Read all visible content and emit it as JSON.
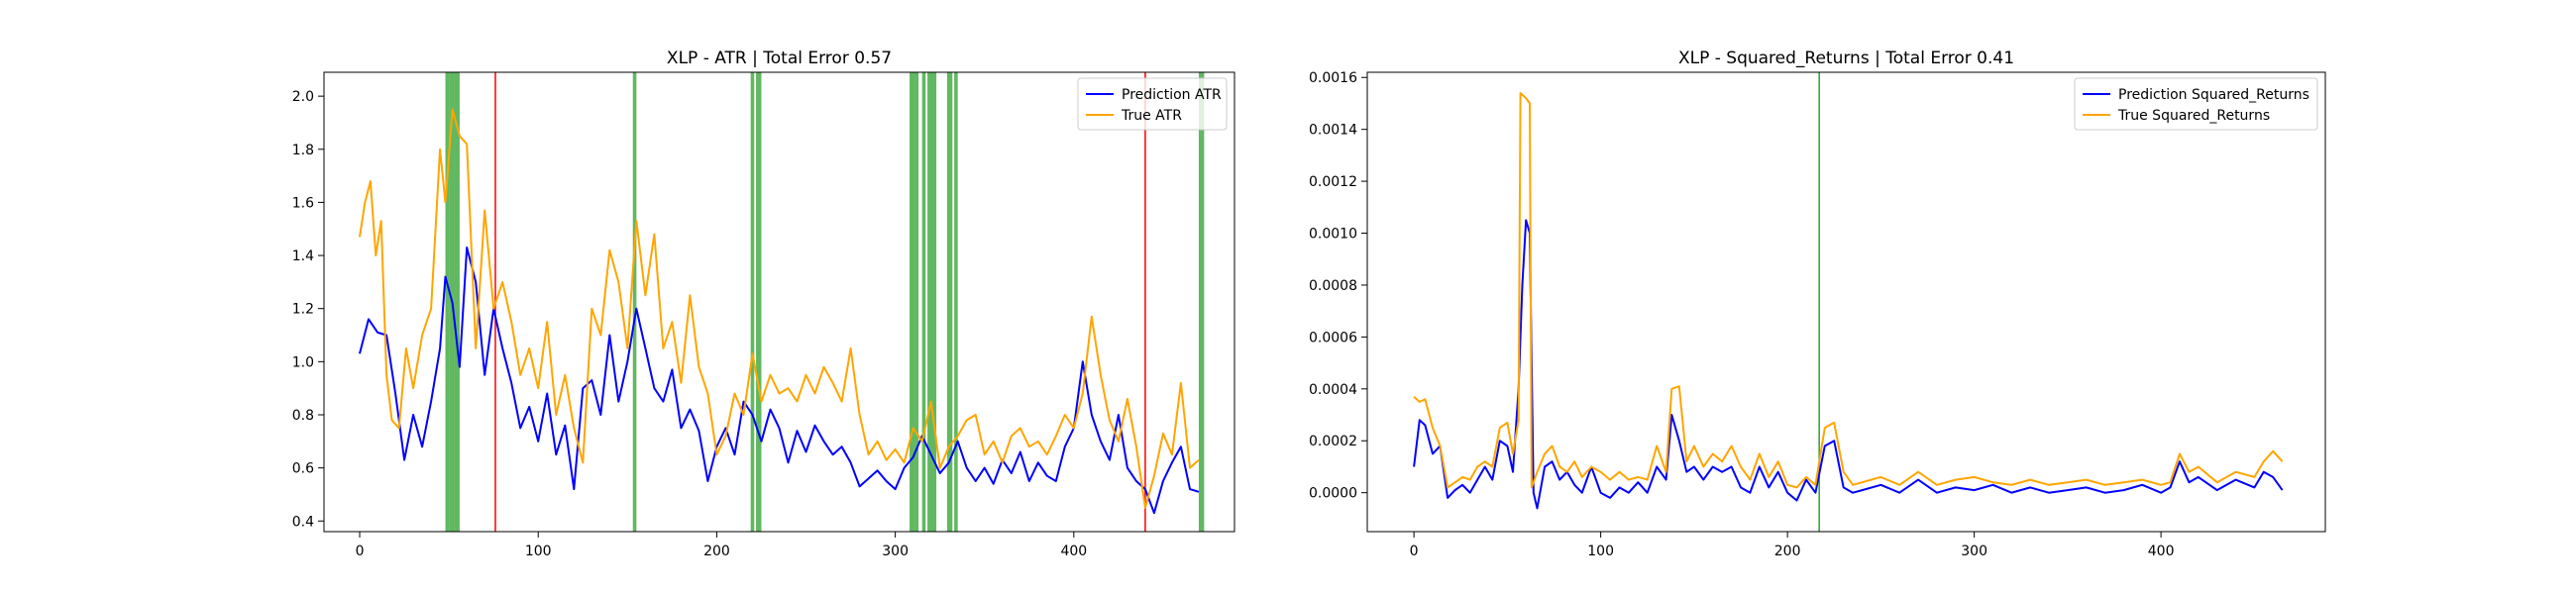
{
  "chart_data": [
    {
      "type": "line",
      "title": "XLP - ATR | Total Error 0.57",
      "xlabel": "",
      "ylabel": "",
      "xlim": [
        -20,
        490
      ],
      "ylim": [
        0.36,
        2.09
      ],
      "xticks": [
        0,
        100,
        200,
        300,
        400
      ],
      "yticks": [
        0.4,
        0.6,
        0.8,
        1.0,
        1.2,
        1.4,
        1.6,
        1.8,
        2.0
      ],
      "ytick_labels": [
        "0.4",
        "0.6",
        "0.8",
        "1.0",
        "1.2",
        "1.4",
        "1.6",
        "1.8",
        "2.0"
      ],
      "grid": false,
      "legend": "top-right",
      "colors": {
        "prediction": "#0000ff",
        "true": "#ffa500",
        "green_marker": "#2ca02c",
        "red_marker": "#ff0000"
      },
      "series": [
        {
          "name": "Prediction ATR",
          "color": "#0000ff",
          "x": [
            0,
            5,
            10,
            15,
            20,
            25,
            30,
            35,
            40,
            45,
            48,
            52,
            56,
            60,
            65,
            70,
            75,
            80,
            85,
            90,
            95,
            100,
            105,
            110,
            115,
            120,
            125,
            130,
            135,
            140,
            145,
            150,
            155,
            160,
            165,
            170,
            175,
            180,
            185,
            190,
            195,
            200,
            205,
            210,
            215,
            220,
            225,
            230,
            235,
            240,
            245,
            250,
            255,
            260,
            265,
            270,
            275,
            280,
            285,
            290,
            295,
            300,
            305,
            310,
            315,
            320,
            325,
            330,
            335,
            340,
            345,
            350,
            355,
            360,
            365,
            370,
            375,
            380,
            385,
            390,
            395,
            400,
            405,
            410,
            415,
            420,
            425,
            430,
            435,
            440,
            445,
            450,
            455,
            460,
            465,
            470
          ],
          "y": [
            1.03,
            1.16,
            1.11,
            1.1,
            0.88,
            0.63,
            0.8,
            0.68,
            0.85,
            1.05,
            1.32,
            1.22,
            0.98,
            1.43,
            1.3,
            0.95,
            1.2,
            1.05,
            0.92,
            0.75,
            0.83,
            0.7,
            0.88,
            0.65,
            0.76,
            0.52,
            0.9,
            0.93,
            0.8,
            1.1,
            0.85,
            1.0,
            1.2,
            1.05,
            0.9,
            0.85,
            0.97,
            0.75,
            0.82,
            0.74,
            0.55,
            0.68,
            0.75,
            0.65,
            0.85,
            0.8,
            0.7,
            0.82,
            0.75,
            0.62,
            0.74,
            0.66,
            0.76,
            0.7,
            0.65,
            0.68,
            0.62,
            0.53,
            0.56,
            0.59,
            0.55,
            0.52,
            0.6,
            0.64,
            0.72,
            0.65,
            0.58,
            0.62,
            0.7,
            0.6,
            0.55,
            0.6,
            0.54,
            0.63,
            0.58,
            0.66,
            0.55,
            0.62,
            0.57,
            0.55,
            0.68,
            0.75,
            1.0,
            0.8,
            0.7,
            0.63,
            0.8,
            0.6,
            0.55,
            0.52,
            0.43,
            0.55,
            0.62,
            0.68,
            0.52,
            0.51
          ]
        },
        {
          "name": "True ATR",
          "color": "#ffa500",
          "x": [
            0,
            3,
            6,
            9,
            12,
            15,
            18,
            22,
            26,
            30,
            35,
            40,
            45,
            48,
            52,
            56,
            60,
            65,
            70,
            75,
            80,
            85,
            90,
            95,
            100,
            105,
            110,
            115,
            120,
            125,
            130,
            135,
            140,
            145,
            150,
            155,
            160,
            165,
            170,
            175,
            180,
            185,
            190,
            195,
            200,
            205,
            210,
            215,
            220,
            225,
            230,
            235,
            240,
            245,
            250,
            255,
            260,
            265,
            270,
            275,
            280,
            285,
            290,
            295,
            300,
            305,
            310,
            315,
            320,
            325,
            330,
            335,
            340,
            345,
            350,
            355,
            360,
            365,
            370,
            375,
            380,
            385,
            390,
            395,
            400,
            405,
            410,
            415,
            420,
            425,
            430,
            435,
            440,
            445,
            450,
            455,
            460,
            465,
            470
          ],
          "y": [
            1.47,
            1.6,
            1.68,
            1.4,
            1.53,
            0.95,
            0.78,
            0.75,
            1.05,
            0.9,
            1.1,
            1.2,
            1.8,
            1.6,
            1.95,
            1.85,
            1.82,
            1.05,
            1.57,
            1.2,
            1.3,
            1.15,
            0.95,
            1.05,
            0.9,
            1.15,
            0.8,
            0.95,
            0.75,
            0.62,
            1.2,
            1.1,
            1.42,
            1.3,
            1.05,
            1.53,
            1.25,
            1.48,
            1.05,
            1.15,
            0.92,
            1.25,
            0.98,
            0.88,
            0.65,
            0.72,
            0.88,
            0.8,
            1.03,
            0.85,
            0.95,
            0.88,
            0.9,
            0.85,
            0.95,
            0.88,
            0.98,
            0.92,
            0.85,
            1.05,
            0.8,
            0.65,
            0.7,
            0.63,
            0.67,
            0.62,
            0.75,
            0.7,
            0.85,
            0.6,
            0.68,
            0.72,
            0.78,
            0.8,
            0.65,
            0.7,
            0.62,
            0.72,
            0.75,
            0.68,
            0.7,
            0.65,
            0.72,
            0.8,
            0.75,
            0.88,
            1.17,
            0.95,
            0.78,
            0.7,
            0.86,
            0.68,
            0.45,
            0.57,
            0.73,
            0.65,
            0.92,
            0.6,
            0.63
          ]
        }
      ],
      "green_bands": [
        [
          48,
          50
        ],
        [
          50,
          53
        ],
        [
          53,
          56
        ],
        [
          153,
          155
        ],
        [
          219,
          221
        ],
        [
          222,
          225
        ],
        [
          308,
          311
        ],
        [
          311,
          313
        ],
        [
          315,
          317
        ],
        [
          318,
          323
        ],
        [
          329,
          332
        ],
        [
          333,
          335
        ],
        [
          470,
          473
        ]
      ],
      "red_lines": [
        76,
        440
      ]
    },
    {
      "type": "line",
      "title": "XLP - Squared_Returns | Total Error 0.41",
      "xlabel": "",
      "ylabel": "",
      "xlim": [
        -25,
        488
      ],
      "ylim": [
        -0.00015,
        0.00162
      ],
      "xticks": [
        0,
        100,
        200,
        300,
        400
      ],
      "yticks": [
        0.0,
        0.0002,
        0.0004,
        0.0006,
        0.0008,
        0.001,
        0.0012,
        0.0014,
        0.0016
      ],
      "ytick_labels": [
        "0.0000",
        "0.0002",
        "0.0004",
        "0.0006",
        "0.0008",
        "0.0010",
        "0.0012",
        "0.0014",
        "0.0016"
      ],
      "grid": false,
      "legend": "top-right",
      "colors": {
        "prediction": "#0000ff",
        "true": "#ffa500",
        "green_marker": "#2ca02c"
      },
      "series": [
        {
          "name": "Prediction Squared_Returns",
          "color": "#0000ff",
          "x": [
            0,
            3,
            6,
            10,
            14,
            18,
            22,
            26,
            30,
            34,
            38,
            42,
            46,
            50,
            53,
            56,
            58,
            60,
            62,
            64,
            66,
            70,
            74,
            78,
            82,
            86,
            90,
            95,
            100,
            105,
            110,
            115,
            120,
            125,
            130,
            135,
            138,
            142,
            146,
            150,
            155,
            160,
            165,
            170,
            175,
            180,
            185,
            190,
            195,
            200,
            205,
            210,
            215,
            220,
            225,
            230,
            235,
            240,
            250,
            260,
            270,
            280,
            290,
            300,
            310,
            320,
            330,
            340,
            350,
            360,
            370,
            380,
            390,
            400,
            405,
            410,
            415,
            420,
            430,
            440,
            450,
            455,
            460,
            465
          ],
          "y": [
            0.0001,
            0.00028,
            0.00026,
            0.00015,
            0.00018,
            -2e-05,
            1e-05,
            3e-05,
            0.0,
            5e-05,
            0.0001,
            5e-05,
            0.0002,
            0.00018,
            8e-05,
            0.0004,
            0.0008,
            0.00105,
            0.001,
            0.0,
            -6e-05,
            0.0001,
            0.00012,
            5e-05,
            8e-05,
            3e-05,
            0.0,
            0.0001,
            0.0,
            -2e-05,
            2e-05,
            0.0,
            4e-05,
            0.0,
            0.0001,
            5e-05,
            0.0003,
            0.0002,
            8e-05,
            0.0001,
            5e-05,
            0.0001,
            8e-05,
            0.0001,
            2e-05,
            0.0,
            0.0001,
            2e-05,
            8e-05,
            0.0,
            -3e-05,
            5e-05,
            0.0,
            0.00018,
            0.0002,
            2e-05,
            0.0,
            1e-05,
            3e-05,
            0.0,
            5e-05,
            0.0,
            2e-05,
            1e-05,
            3e-05,
            0.0,
            2e-05,
            0.0,
            1e-05,
            2e-05,
            0.0,
            1e-05,
            3e-05,
            0.0,
            2e-05,
            0.00012,
            4e-05,
            6e-05,
            1e-05,
            5e-05,
            2e-05,
            8e-05,
            6e-05,
            1e-05
          ]
        },
        {
          "name": "True Squared_Returns",
          "color": "#ffa500",
          "x": [
            0,
            3,
            6,
            10,
            14,
            18,
            22,
            26,
            30,
            34,
            38,
            42,
            46,
            50,
            53,
            56,
            57,
            60,
            62,
            63,
            66,
            70,
            74,
            78,
            82,
            86,
            90,
            95,
            100,
            105,
            110,
            115,
            120,
            125,
            130,
            135,
            138,
            142,
            146,
            150,
            155,
            160,
            165,
            170,
            175,
            180,
            185,
            190,
            195,
            200,
            205,
            210,
            215,
            220,
            225,
            230,
            235,
            240,
            250,
            260,
            270,
            280,
            290,
            300,
            310,
            320,
            330,
            340,
            350,
            360,
            370,
            380,
            390,
            400,
            405,
            410,
            415,
            420,
            430,
            440,
            450,
            455,
            460,
            465
          ],
          "y": [
            0.00037,
            0.00035,
            0.00036,
            0.00025,
            0.00018,
            2e-05,
            4e-05,
            6e-05,
            5e-05,
            0.0001,
            0.00012,
            0.0001,
            0.00025,
            0.00027,
            0.00015,
            0.00028,
            0.00154,
            0.00152,
            0.0015,
            2e-05,
            8e-05,
            0.00015,
            0.00018,
            0.0001,
            8e-05,
            0.00012,
            6e-05,
            0.0001,
            8e-05,
            5e-05,
            8e-05,
            5e-05,
            6e-05,
            5e-05,
            0.00018,
            8e-05,
            0.0004,
            0.00041,
            0.00012,
            0.00018,
            0.0001,
            0.00015,
            0.00012,
            0.00018,
            0.0001,
            5e-05,
            0.00015,
            6e-05,
            0.00012,
            3e-05,
            2e-05,
            6e-05,
            3e-05,
            0.00025,
            0.00027,
            8e-05,
            3e-05,
            4e-05,
            6e-05,
            3e-05,
            8e-05,
            3e-05,
            5e-05,
            6e-05,
            4e-05,
            3e-05,
            5e-05,
            3e-05,
            4e-05,
            5e-05,
            3e-05,
            4e-05,
            5e-05,
            3e-05,
            4e-05,
            0.00015,
            8e-05,
            0.0001,
            4e-05,
            8e-05,
            6e-05,
            0.00012,
            0.00016,
            0.00012
          ]
        }
      ],
      "green_lines": [
        217
      ]
    }
  ]
}
